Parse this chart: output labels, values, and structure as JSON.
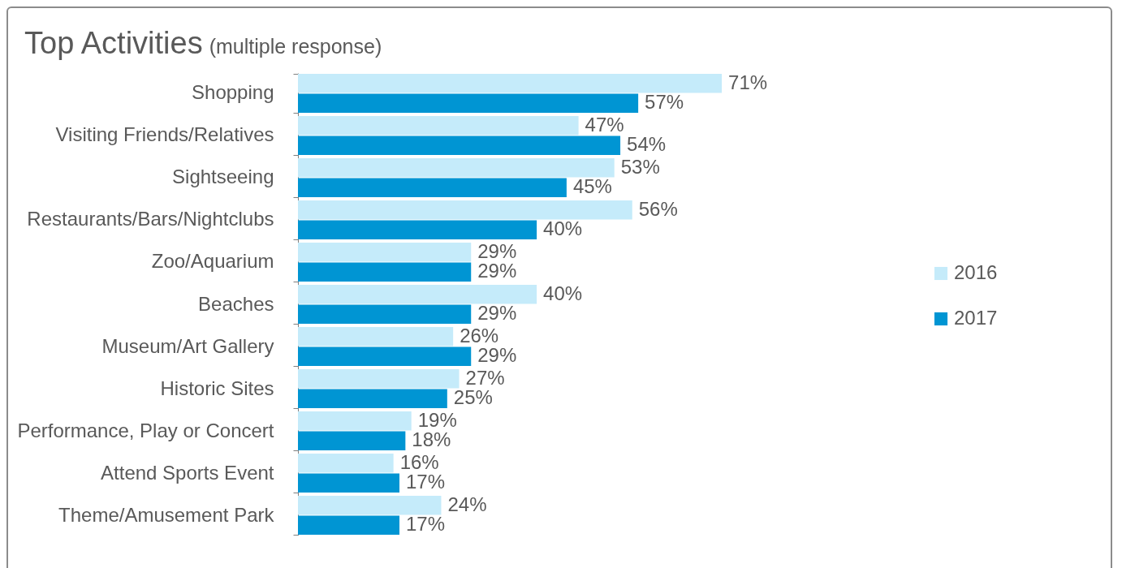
{
  "chart_data": {
    "type": "bar",
    "orientation": "horizontal",
    "title": "Top Activities",
    "subtitle": "(multiple response)",
    "categories": [
      "Shopping",
      "Visiting Friends/Relatives",
      "Sightseeing",
      "Restaurants/Bars/Nightclubs",
      "Zoo/Aquarium",
      "Beaches",
      "Museum/Art Gallery",
      "Historic Sites",
      "Performance, Play or Concert",
      "Attend Sports Event",
      "Theme/Amusement Park"
    ],
    "series": [
      {
        "name": "2016",
        "color": "#c5ebfa",
        "values": [
          71,
          47,
          53,
          56,
          29,
          40,
          26,
          27,
          19,
          16,
          24
        ],
        "value_labels": [
          "71%",
          "47%",
          "53%",
          "56%",
          "29%",
          "40%",
          "26%",
          "27%",
          "19%",
          "16%",
          "24%"
        ]
      },
      {
        "name": "2017",
        "color": "#0095d3",
        "values": [
          57,
          54,
          45,
          40,
          29,
          29,
          29,
          25,
          18,
          17,
          17
        ],
        "value_labels": [
          "57%",
          "54%",
          "45%",
          "40%",
          "29%",
          "29%",
          "29%",
          "25%",
          "18%",
          "17%",
          "17%"
        ]
      }
    ],
    "legend": "right",
    "tick_labels": "y"
  }
}
